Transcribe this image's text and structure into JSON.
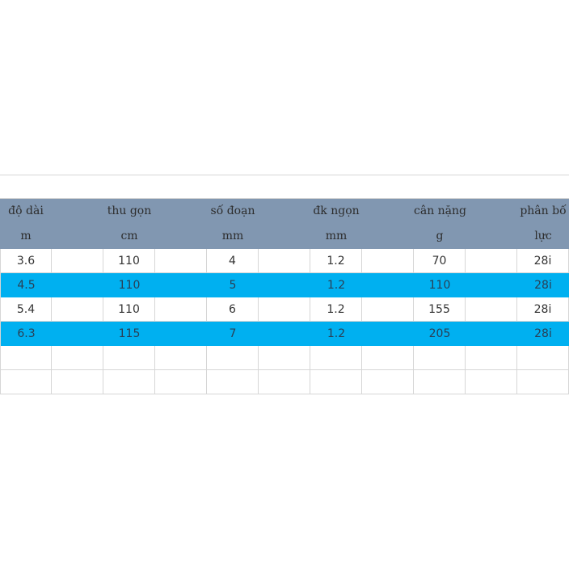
{
  "table": {
    "headers": [
      "độ dài",
      "thu gọn",
      "số đoạn",
      "đk ngọn",
      "cân nặng",
      "phân bố"
    ],
    "units": [
      "m",
      "cm",
      "mm",
      "mm",
      "g",
      "lực"
    ],
    "rows": [
      [
        "3.6",
        "110",
        "4",
        "1.2",
        "70",
        "28i"
      ],
      [
        "4.5",
        "110",
        "5",
        "1.2",
        "110",
        "28i"
      ],
      [
        "5.4",
        "110",
        "6",
        "1.2",
        "155",
        "28i"
      ],
      [
        "6.3",
        "115",
        "7",
        "1.2",
        "205",
        "28i"
      ]
    ]
  },
  "colors": {
    "header_bg": "#8197b1",
    "highlight_row": "#00b0f0",
    "grid": "#d6d6d6"
  }
}
